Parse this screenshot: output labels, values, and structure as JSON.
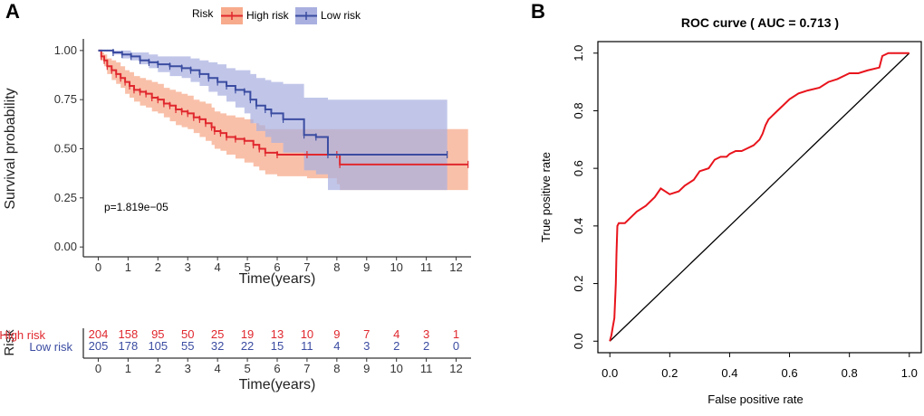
{
  "panels": {
    "a_label": "A",
    "b_label": "B"
  },
  "colors": {
    "high": "#e0282e",
    "low": "#3b4ca1",
    "high_band": "#f7ab8c",
    "low_band": "#a9b0e0",
    "roc": "#e8141c",
    "axis": "#000000"
  },
  "chart_data": [
    {
      "type": "line",
      "subtype": "kaplan-meier",
      "legend_title": "Risk",
      "legend_position": "top",
      "xlabel": "Time(years)",
      "ylabel": "Survival probability",
      "xlim": [
        -0.5,
        12.5
      ],
      "ylim": [
        -0.05,
        1.05
      ],
      "x_ticks": [
        0,
        1,
        2,
        3,
        4,
        5,
        6,
        7,
        8,
        9,
        10,
        11,
        12
      ],
      "x_tick_labels": [
        "0",
        "1",
        "2",
        "3",
        "4",
        "5",
        "6",
        "7",
        "8",
        "9",
        "10",
        "11",
        "12"
      ],
      "y_ticks": [
        0,
        0.25,
        0.5,
        0.75,
        1.0
      ],
      "y_tick_labels": [
        "0.00",
        "0.25",
        "0.50",
        "0.75",
        "1.00"
      ],
      "annotation": "p=1.819e−05",
      "series": [
        {
          "name": "High risk",
          "x": [
            0,
            0.1,
            0.2,
            0.3,
            0.45,
            0.6,
            0.75,
            0.9,
            1.05,
            1.2,
            1.4,
            1.6,
            1.8,
            2.0,
            2.2,
            2.4,
            2.6,
            2.8,
            3.0,
            3.2,
            3.4,
            3.6,
            3.8,
            3.9,
            4.1,
            4.3,
            4.6,
            4.9,
            5.2,
            5.4,
            5.6,
            6.0,
            7.0,
            8.0,
            8.1,
            12.4
          ],
          "y": [
            1.0,
            0.97,
            0.95,
            0.92,
            0.9,
            0.88,
            0.86,
            0.84,
            0.82,
            0.8,
            0.79,
            0.78,
            0.76,
            0.75,
            0.73,
            0.72,
            0.7,
            0.69,
            0.68,
            0.66,
            0.65,
            0.63,
            0.61,
            0.59,
            0.58,
            0.56,
            0.55,
            0.54,
            0.52,
            0.5,
            0.48,
            0.47,
            0.47,
            0.47,
            0.42,
            0.42
          ],
          "ci_lower": [
            1.0,
            0.95,
            0.92,
            0.88,
            0.85,
            0.83,
            0.81,
            0.78,
            0.76,
            0.74,
            0.72,
            0.71,
            0.69,
            0.68,
            0.66,
            0.64,
            0.62,
            0.61,
            0.6,
            0.58,
            0.56,
            0.54,
            0.52,
            0.5,
            0.49,
            0.47,
            0.45,
            0.43,
            0.41,
            0.39,
            0.37,
            0.36,
            0.35,
            0.32,
            0.29,
            0.29
          ],
          "ci_upper": [
            1.0,
            0.99,
            0.98,
            0.96,
            0.95,
            0.94,
            0.92,
            0.9,
            0.89,
            0.87,
            0.86,
            0.85,
            0.84,
            0.83,
            0.81,
            0.8,
            0.79,
            0.78,
            0.77,
            0.75,
            0.74,
            0.73,
            0.71,
            0.69,
            0.68,
            0.67,
            0.66,
            0.65,
            0.63,
            0.62,
            0.6,
            0.6,
            0.6,
            0.6,
            0.6,
            0.6
          ]
        },
        {
          "name": "Low risk",
          "x": [
            0,
            0.5,
            0.8,
            1.1,
            1.4,
            1.7,
            2.0,
            2.4,
            2.8,
            3.1,
            3.4,
            3.7,
            4.0,
            4.3,
            4.6,
            4.9,
            5.1,
            5.3,
            5.6,
            5.8,
            6.2,
            6.9,
            7.3,
            7.7,
            11.7
          ],
          "y": [
            1.0,
            0.99,
            0.98,
            0.97,
            0.95,
            0.94,
            0.93,
            0.92,
            0.91,
            0.9,
            0.88,
            0.86,
            0.84,
            0.82,
            0.8,
            0.79,
            0.75,
            0.72,
            0.7,
            0.68,
            0.65,
            0.57,
            0.56,
            0.47,
            0.47
          ],
          "ci_lower": [
            1.0,
            0.98,
            0.96,
            0.95,
            0.93,
            0.91,
            0.89,
            0.87,
            0.86,
            0.84,
            0.82,
            0.79,
            0.77,
            0.74,
            0.71,
            0.68,
            0.63,
            0.59,
            0.56,
            0.53,
            0.48,
            0.39,
            0.37,
            0.29,
            0.29
          ],
          "ci_upper": [
            1.0,
            1.0,
            1.0,
            0.99,
            0.99,
            0.98,
            0.97,
            0.97,
            0.97,
            0.96,
            0.95,
            0.94,
            0.93,
            0.91,
            0.9,
            0.9,
            0.88,
            0.86,
            0.85,
            0.84,
            0.83,
            0.76,
            0.76,
            0.75,
            0.75
          ]
        }
      ]
    },
    {
      "type": "table",
      "title": "Risk",
      "xlabel": "Time(years)",
      "columns": [
        "0",
        "1",
        "2",
        "3",
        "4",
        "5",
        "6",
        "7",
        "8",
        "9",
        "10",
        "11",
        "12"
      ],
      "rows": [
        {
          "name": "High risk",
          "values": [
            "204",
            "158",
            "95",
            "50",
            "25",
            "19",
            "13",
            "10",
            "9",
            "7",
            "4",
            "3",
            "1"
          ]
        },
        {
          "name": "Low risk",
          "values": [
            "205",
            "178",
            "105",
            "55",
            "32",
            "22",
            "15",
            "11",
            "4",
            "3",
            "2",
            "2",
            "0"
          ]
        }
      ]
    },
    {
      "type": "line",
      "subtype": "roc",
      "title": "ROC curve ( AUC =  0.713 )",
      "xlabel": "False positive rate",
      "ylabel": "True positive rate",
      "xlim": [
        -0.04,
        1.04
      ],
      "ylim": [
        -0.04,
        1.04
      ],
      "x_ticks": [
        0,
        0.2,
        0.4,
        0.6,
        0.8,
        1.0
      ],
      "x_tick_labels": [
        "0.0",
        "0.2",
        "0.4",
        "0.6",
        "0.8",
        "1.0"
      ],
      "y_ticks": [
        0,
        0.2,
        0.4,
        0.6,
        0.8,
        1.0
      ],
      "y_tick_labels": [
        "0.0",
        "0.2",
        "0.4",
        "0.6",
        "0.8",
        "1.0"
      ],
      "diagonal": true,
      "series": [
        {
          "name": "ROC",
          "x": [
            0,
            0.005,
            0.01,
            0.015,
            0.02,
            0.022,
            0.025,
            0.03,
            0.05,
            0.07,
            0.09,
            0.12,
            0.15,
            0.17,
            0.2,
            0.23,
            0.25,
            0.28,
            0.3,
            0.33,
            0.35,
            0.37,
            0.39,
            0.4,
            0.42,
            0.44,
            0.46,
            0.48,
            0.5,
            0.51,
            0.52,
            0.53,
            0.54,
            0.56,
            0.58,
            0.6,
            0.63,
            0.66,
            0.7,
            0.73,
            0.76,
            0.8,
            0.83,
            0.86,
            0.9,
            0.91,
            0.93,
            0.95,
            1.0
          ],
          "y": [
            0,
            0.02,
            0.05,
            0.08,
            0.2,
            0.3,
            0.4,
            0.41,
            0.41,
            0.43,
            0.45,
            0.47,
            0.5,
            0.53,
            0.51,
            0.52,
            0.54,
            0.56,
            0.59,
            0.6,
            0.63,
            0.64,
            0.64,
            0.65,
            0.66,
            0.66,
            0.67,
            0.68,
            0.7,
            0.72,
            0.75,
            0.77,
            0.78,
            0.8,
            0.82,
            0.84,
            0.86,
            0.87,
            0.88,
            0.9,
            0.91,
            0.93,
            0.93,
            0.94,
            0.95,
            0.99,
            1.0,
            1.0,
            1.0
          ]
        }
      ]
    }
  ]
}
